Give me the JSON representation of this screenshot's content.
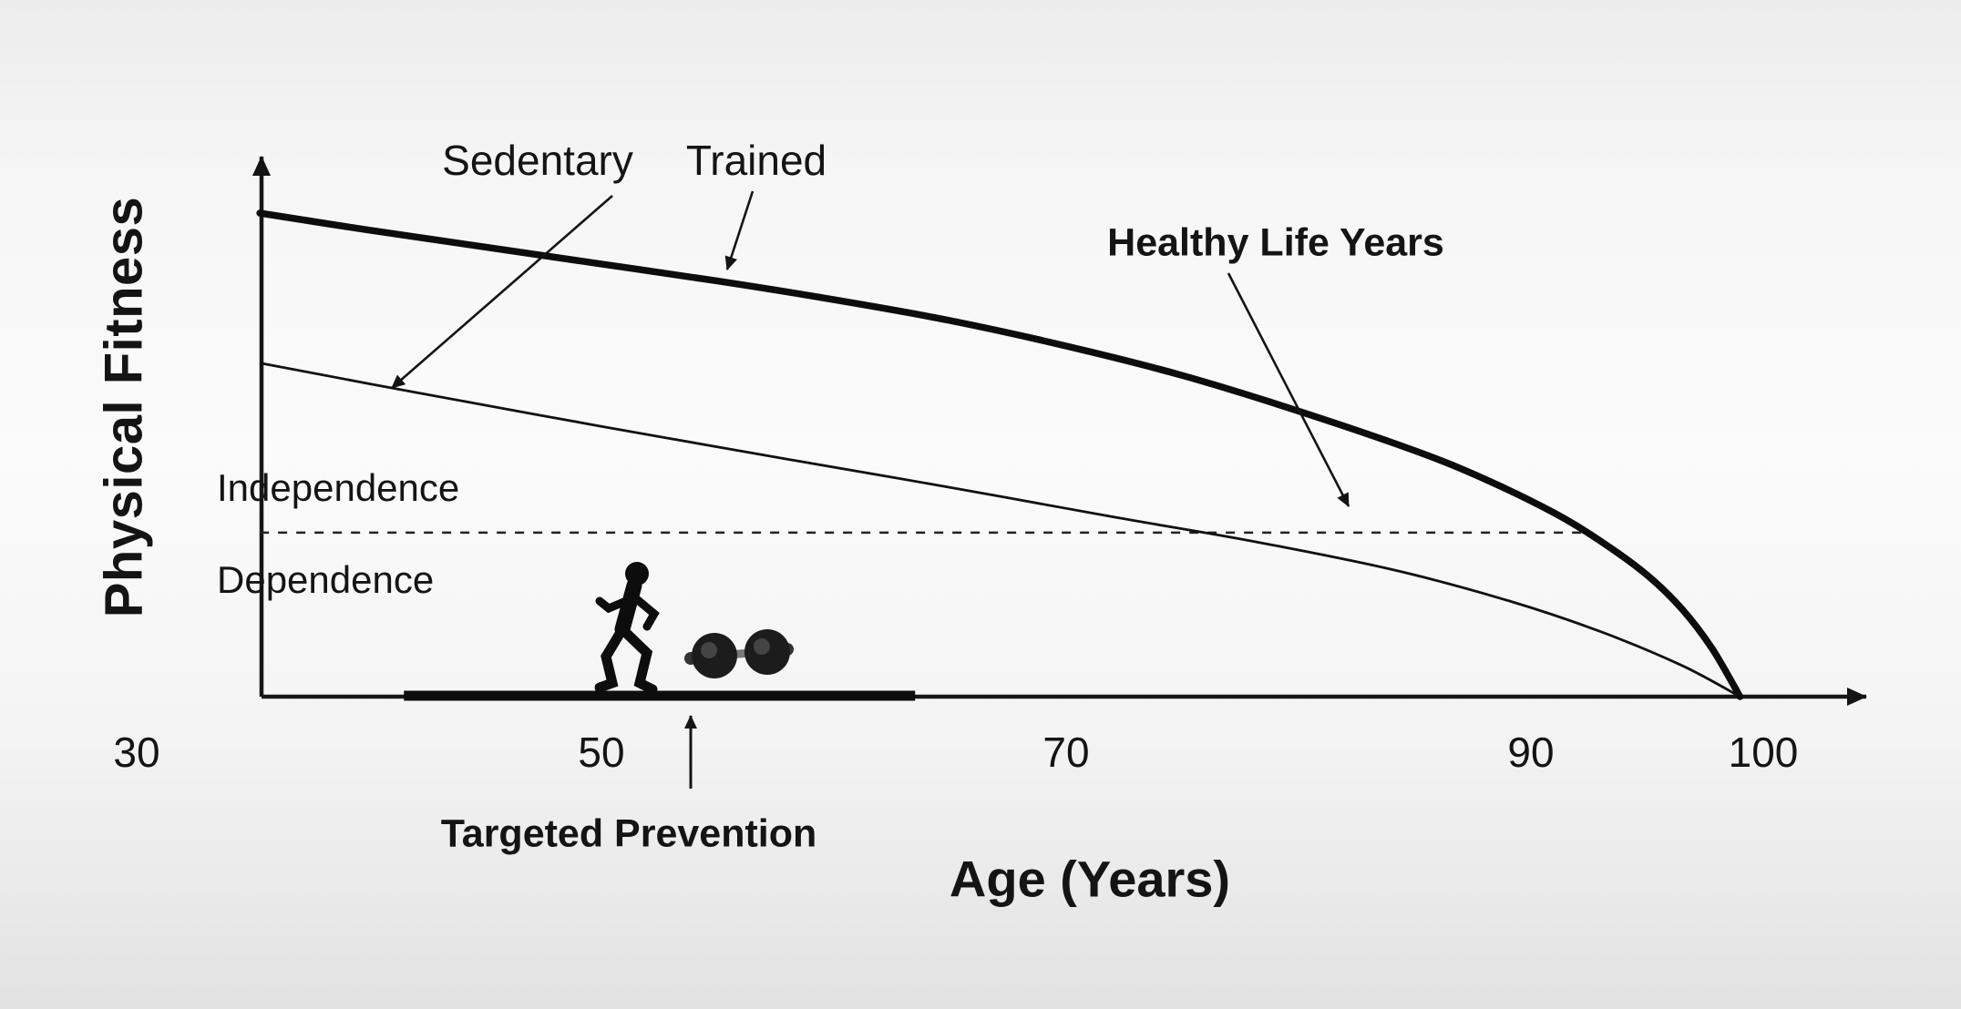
{
  "colors": {
    "ink": "#141414",
    "line": "#111111",
    "bg-top": "#ececec",
    "bg-mid": "#fbfbfb",
    "bg-bottom": "#e2e2e2"
  },
  "chart_data": {
    "type": "line",
    "title": "",
    "xlabel": "Age (Years)",
    "ylabel": "Physical Fitness",
    "x_ticks": [
      30,
      50,
      70,
      90,
      100
    ],
    "x_range": [
      30,
      107
    ],
    "y_range_conceptual": [
      "Dependence",
      "Independence"
    ],
    "grid": false,
    "legend": "inline-annotations",
    "series": [
      {
        "name": "Trained",
        "line": "thick",
        "points": [
          [
            35.3,
            85.5
          ],
          [
            40,
            82.5
          ],
          [
            45,
            79.5
          ],
          [
            50,
            76.5
          ],
          [
            55,
            73.5
          ],
          [
            60,
            70.2
          ],
          [
            65,
            66.5
          ],
          [
            70,
            62
          ],
          [
            75,
            56.8
          ],
          [
            80,
            50.5
          ],
          [
            85,
            43.5
          ],
          [
            88,
            38.5
          ],
          [
            91,
            32.5
          ],
          [
            93,
            27.5
          ],
          [
            95,
            21.5
          ],
          [
            96.5,
            15.5
          ],
          [
            97.8,
            8.5
          ],
          [
            99,
            0
          ]
        ]
      },
      {
        "name": "Sedentary",
        "line": "thin",
        "points": [
          [
            35.3,
            59
          ],
          [
            42,
            53.8
          ],
          [
            50,
            47.8
          ],
          [
            58,
            42
          ],
          [
            65,
            37
          ],
          [
            72,
            31.8
          ],
          [
            78,
            27.5
          ],
          [
            84,
            22.5
          ],
          [
            89,
            17
          ],
          [
            93,
            11.5
          ],
          [
            96.5,
            5.5
          ],
          [
            99,
            0
          ]
        ]
      }
    ],
    "threshold": {
      "value": 29,
      "from_age": 35.3,
      "to_age": 92.5,
      "style": "dashed",
      "label_above": "Independence",
      "label_below": "Dependence"
    },
    "prevention_bar": {
      "label": "Targeted Prevention",
      "from_age": 41.5,
      "to_age": 63.5
    },
    "annotations": {
      "healthy_life_years": "Healthy Life Years"
    }
  },
  "icons": [
    {
      "name": "runner-icon",
      "meaning": "running person silhouette"
    },
    {
      "name": "dumbbell-icon",
      "meaning": "dumbbell weight"
    }
  ]
}
